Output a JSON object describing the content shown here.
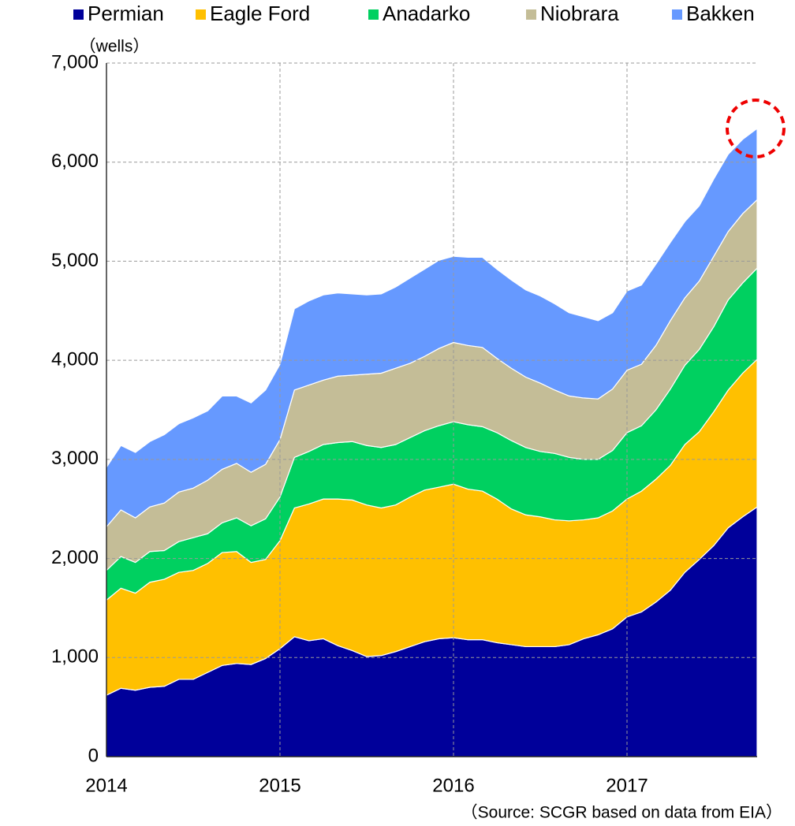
{
  "chart_data": {
    "type": "stacked_area",
    "y_axis_label": "（wells）",
    "source": "（Source: SCGR based on data from EIA）",
    "categories": [
      "2014",
      null,
      null,
      null,
      null,
      null,
      null,
      null,
      null,
      null,
      null,
      null,
      "2015",
      null,
      null,
      null,
      null,
      null,
      null,
      null,
      null,
      null,
      null,
      null,
      "2016",
      null,
      null,
      null,
      null,
      null,
      null,
      null,
      null,
      null,
      null,
      null,
      "2017",
      null,
      null,
      null,
      null,
      null,
      null,
      null,
      null,
      null
    ],
    "series": [
      {
        "name": "Permian",
        "color": "#00009a",
        "values": [
          620,
          690,
          670,
          700,
          710,
          780,
          780,
          850,
          920,
          940,
          930,
          990,
          1090,
          1210,
          1170,
          1190,
          1120,
          1070,
          1010,
          1020,
          1060,
          1110,
          1160,
          1190,
          1200,
          1180,
          1180,
          1150,
          1130,
          1110,
          1110,
          1110,
          1130,
          1190,
          1230,
          1290,
          1410,
          1460,
          1560,
          1680,
          1860,
          1990,
          2130,
          2310,
          2420,
          2520
        ]
      },
      {
        "name": "Eagle Ford",
        "color": "#ffc000",
        "values": [
          960,
          1010,
          980,
          1060,
          1080,
          1080,
          1100,
          1100,
          1140,
          1130,
          1030,
          1000,
          1090,
          1300,
          1380,
          1410,
          1480,
          1520,
          1530,
          1490,
          1480,
          1510,
          1530,
          1530,
          1550,
          1520,
          1500,
          1450,
          1370,
          1330,
          1310,
          1280,
          1250,
          1200,
          1180,
          1190,
          1190,
          1220,
          1240,
          1260,
          1290,
          1290,
          1350,
          1390,
          1450,
          1490
        ]
      },
      {
        "name": "Anadarko",
        "color": "#00d060",
        "values": [
          300,
          320,
          310,
          310,
          290,
          310,
          330,
          300,
          300,
          340,
          370,
          410,
          440,
          510,
          530,
          550,
          570,
          590,
          600,
          610,
          610,
          600,
          600,
          620,
          630,
          650,
          650,
          670,
          690,
          680,
          660,
          670,
          640,
          610,
          590,
          610,
          670,
          660,
          700,
          770,
          800,
          830,
          860,
          910,
          910,
          920
        ]
      },
      {
        "name": "Niobrara",
        "color": "#c4bd97",
        "values": [
          440,
          470,
          450,
          450,
          480,
          500,
          500,
          540,
          540,
          550,
          540,
          550,
          580,
          680,
          670,
          650,
          670,
          670,
          720,
          750,
          770,
          750,
          750,
          780,
          800,
          800,
          800,
          750,
          730,
          710,
          690,
          640,
          620,
          620,
          610,
          620,
          630,
          620,
          650,
          690,
          680,
          690,
          710,
          690,
          700,
          690
        ]
      },
      {
        "name": "Bakken",
        "color": "#6699ff",
        "values": [
          600,
          650,
          660,
          660,
          690,
          690,
          710,
          700,
          740,
          680,
          700,
          750,
          760,
          820,
          850,
          860,
          840,
          820,
          800,
          800,
          820,
          860,
          880,
          890,
          870,
          890,
          910,
          900,
          890,
          880,
          880,
          870,
          840,
          820,
          790,
          770,
          800,
          800,
          820,
          790,
          770,
          760,
          780,
          780,
          750,
          720
        ]
      }
    ],
    "ylim": [
      0,
      7000
    ],
    "yticks": [
      0,
      {
        "value": 1000,
        "label": "1,000"
      },
      {
        "value": 2000,
        "label": "2,000"
      },
      {
        "value": 3000,
        "label": "3,000"
      },
      {
        "value": 4000,
        "label": "4,000"
      },
      {
        "value": 5000,
        "label": "5,000"
      },
      {
        "value": 6000,
        "label": "6,000"
      },
      {
        "value": 7000,
        "label": "7,000"
      }
    ],
    "grid": true,
    "legend": "top"
  }
}
